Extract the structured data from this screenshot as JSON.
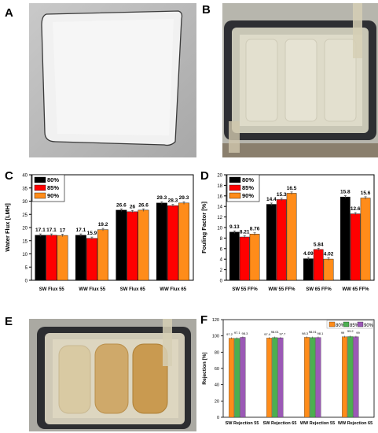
{
  "panels": {
    "A": {
      "letter": "A"
    },
    "B": {
      "letter": "B"
    },
    "C": {
      "letter": "C"
    },
    "D": {
      "letter": "D"
    },
    "E": {
      "letter": "E"
    },
    "F": {
      "letter": "F"
    }
  },
  "colors": {
    "s80": "#000000",
    "s85": "#ff0000",
    "s90": "#ff8c1a",
    "f80": "#ff8c1a",
    "f85": "#4caf50",
    "f90": "#9b59b6"
  },
  "chart_data": [
    {
      "panel": "C",
      "type": "bar",
      "ylabel": "Water Flux [LMH]",
      "ylim": [
        0,
        40
      ],
      "yticks": [
        0,
        5,
        10,
        15,
        20,
        25,
        30,
        35,
        40
      ],
      "categories": [
        "SW Flux 55",
        "WW Flux 55",
        "SW Flux 65",
        "WW Flux 65"
      ],
      "legend": "top-left",
      "series": [
        {
          "name": "80%",
          "values": [
            17.1,
            17.1,
            26.6,
            29.3
          ],
          "labels": [
            "17.1",
            "17.1",
            "26.6",
            "29.3"
          ]
        },
        {
          "name": "85%",
          "values": [
            17.1,
            15.9,
            26,
            28.3
          ],
          "labels": [
            "17.1",
            "15.9",
            "26",
            "28.3"
          ]
        },
        {
          "name": "90%",
          "values": [
            17,
            19.2,
            26.6,
            29.3
          ],
          "labels": [
            "17",
            "19.2",
            "26.6",
            "29.3"
          ]
        }
      ]
    },
    {
      "panel": "D",
      "type": "bar",
      "ylabel": "Fouling Factor [%]",
      "ylim": [
        0,
        20
      ],
      "yticks": [
        0,
        2,
        4,
        6,
        8,
        10,
        12,
        14,
        16,
        18,
        20
      ],
      "categories": [
        "SW 55 FF%",
        "WW 55 FF%",
        "SW 65 FF%",
        "WW 65 FF%"
      ],
      "legend": "top-left",
      "series": [
        {
          "name": "80%",
          "values": [
            9.13,
            14.4,
            4.09,
            15.8
          ],
          "labels": [
            "9.13",
            "14.4",
            "4.09",
            "15.8"
          ]
        },
        {
          "name": "85%",
          "values": [
            8.21,
            15.3,
            5.84,
            12.6
          ],
          "labels": [
            "8.21",
            "15.3",
            "5.84",
            "12.6"
          ]
        },
        {
          "name": "90%",
          "values": [
            8.76,
            16.5,
            4.02,
            15.6
          ],
          "labels": [
            "8.76",
            "16.5",
            "4.02",
            "15.6"
          ]
        }
      ]
    },
    {
      "panel": "F",
      "type": "bar",
      "ylabel": "Rejection [%]",
      "ylim": [
        0,
        120
      ],
      "yticks": [
        0,
        20,
        40,
        60,
        80,
        100,
        120
      ],
      "categories": [
        "SW Rejection 55",
        "SW Rejection 65",
        "WW Rejection 55",
        "WW Rejection 65"
      ],
      "legend": "top-right",
      "series": [
        {
          "name": "80%",
          "values": [
            97.2,
            97.4,
            98.3,
            99
          ],
          "labels": [
            "97.2",
            "97.4",
            "98.3",
            "99"
          ]
        },
        {
          "name": "85%",
          "values": [
            97.1,
            98.01,
            98.01,
            99.2
          ],
          "labels": [
            "97.1",
            "98.01",
            "98.01",
            "99.2"
          ]
        },
        {
          "name": "90%",
          "values": [
            98.3,
            97.7,
            98.1,
            99
          ],
          "labels": [
            "98.3",
            "97.7",
            "98.1",
            "99"
          ]
        }
      ]
    }
  ]
}
